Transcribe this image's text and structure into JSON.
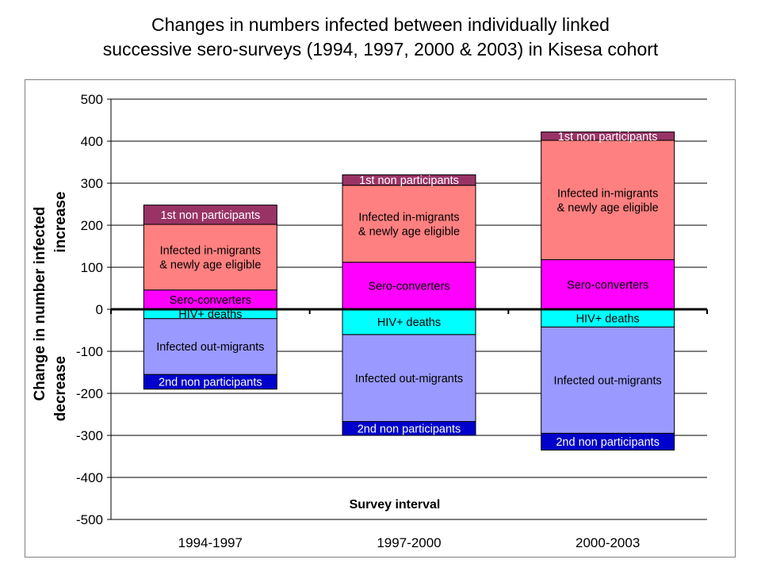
{
  "title_line1": "Changes in numbers infected between individually linked",
  "title_line2": "successive sero-surveys (1994, 1997, 2000 & 2003) in Kisesa cohort",
  "chart_data": {
    "type": "bar",
    "stacked": true,
    "categories": [
      "1994-1997",
      "1997-2000",
      "2000-2003"
    ],
    "ylabel": "Change in number infected",
    "ylabel_increase": "increase",
    "ylabel_decrease": "decrease",
    "xlabel": "Survey interval",
    "ylim": [
      -500,
      500
    ],
    "yticks": [
      -500,
      -400,
      -300,
      -200,
      -100,
      0,
      100,
      200,
      300,
      400,
      500
    ],
    "grid": true,
    "series": [
      {
        "name": "2nd non participants",
        "color": "#0000cc",
        "text_color": "#ffffff",
        "values": [
          [
            -190,
            -155
          ],
          [
            -300,
            -267
          ],
          [
            -335,
            -295
          ]
        ]
      },
      {
        "name": "Infected out-migrants",
        "color": "#9999ff",
        "text_color": "#000000",
        "values": [
          [
            -155,
            -22
          ],
          [
            -267,
            -60
          ],
          [
            -295,
            -42
          ]
        ]
      },
      {
        "name": "HIV+ deaths",
        "color": "#00ffff",
        "text_color": "#000000",
        "values": [
          [
            -22,
            0
          ],
          [
            -60,
            0
          ],
          [
            -42,
            0
          ]
        ]
      },
      {
        "name": "Sero-converters",
        "color": "#ff00ff",
        "text_color": "#000000",
        "values": [
          [
            0,
            46
          ],
          [
            0,
            112
          ],
          [
            0,
            118
          ]
        ]
      },
      {
        "name": "Infected in-migrants\n& newly age eligible",
        "color": "#ff8080",
        "text_color": "#000000",
        "values": [
          [
            46,
            202
          ],
          [
            112,
            295
          ],
          [
            118,
            402
          ]
        ]
      },
      {
        "name": "1st non participants",
        "color": "#993366",
        "text_color": "#ffffff",
        "values": [
          [
            202,
            248
          ],
          [
            295,
            320
          ],
          [
            402,
            422
          ]
        ]
      }
    ]
  }
}
